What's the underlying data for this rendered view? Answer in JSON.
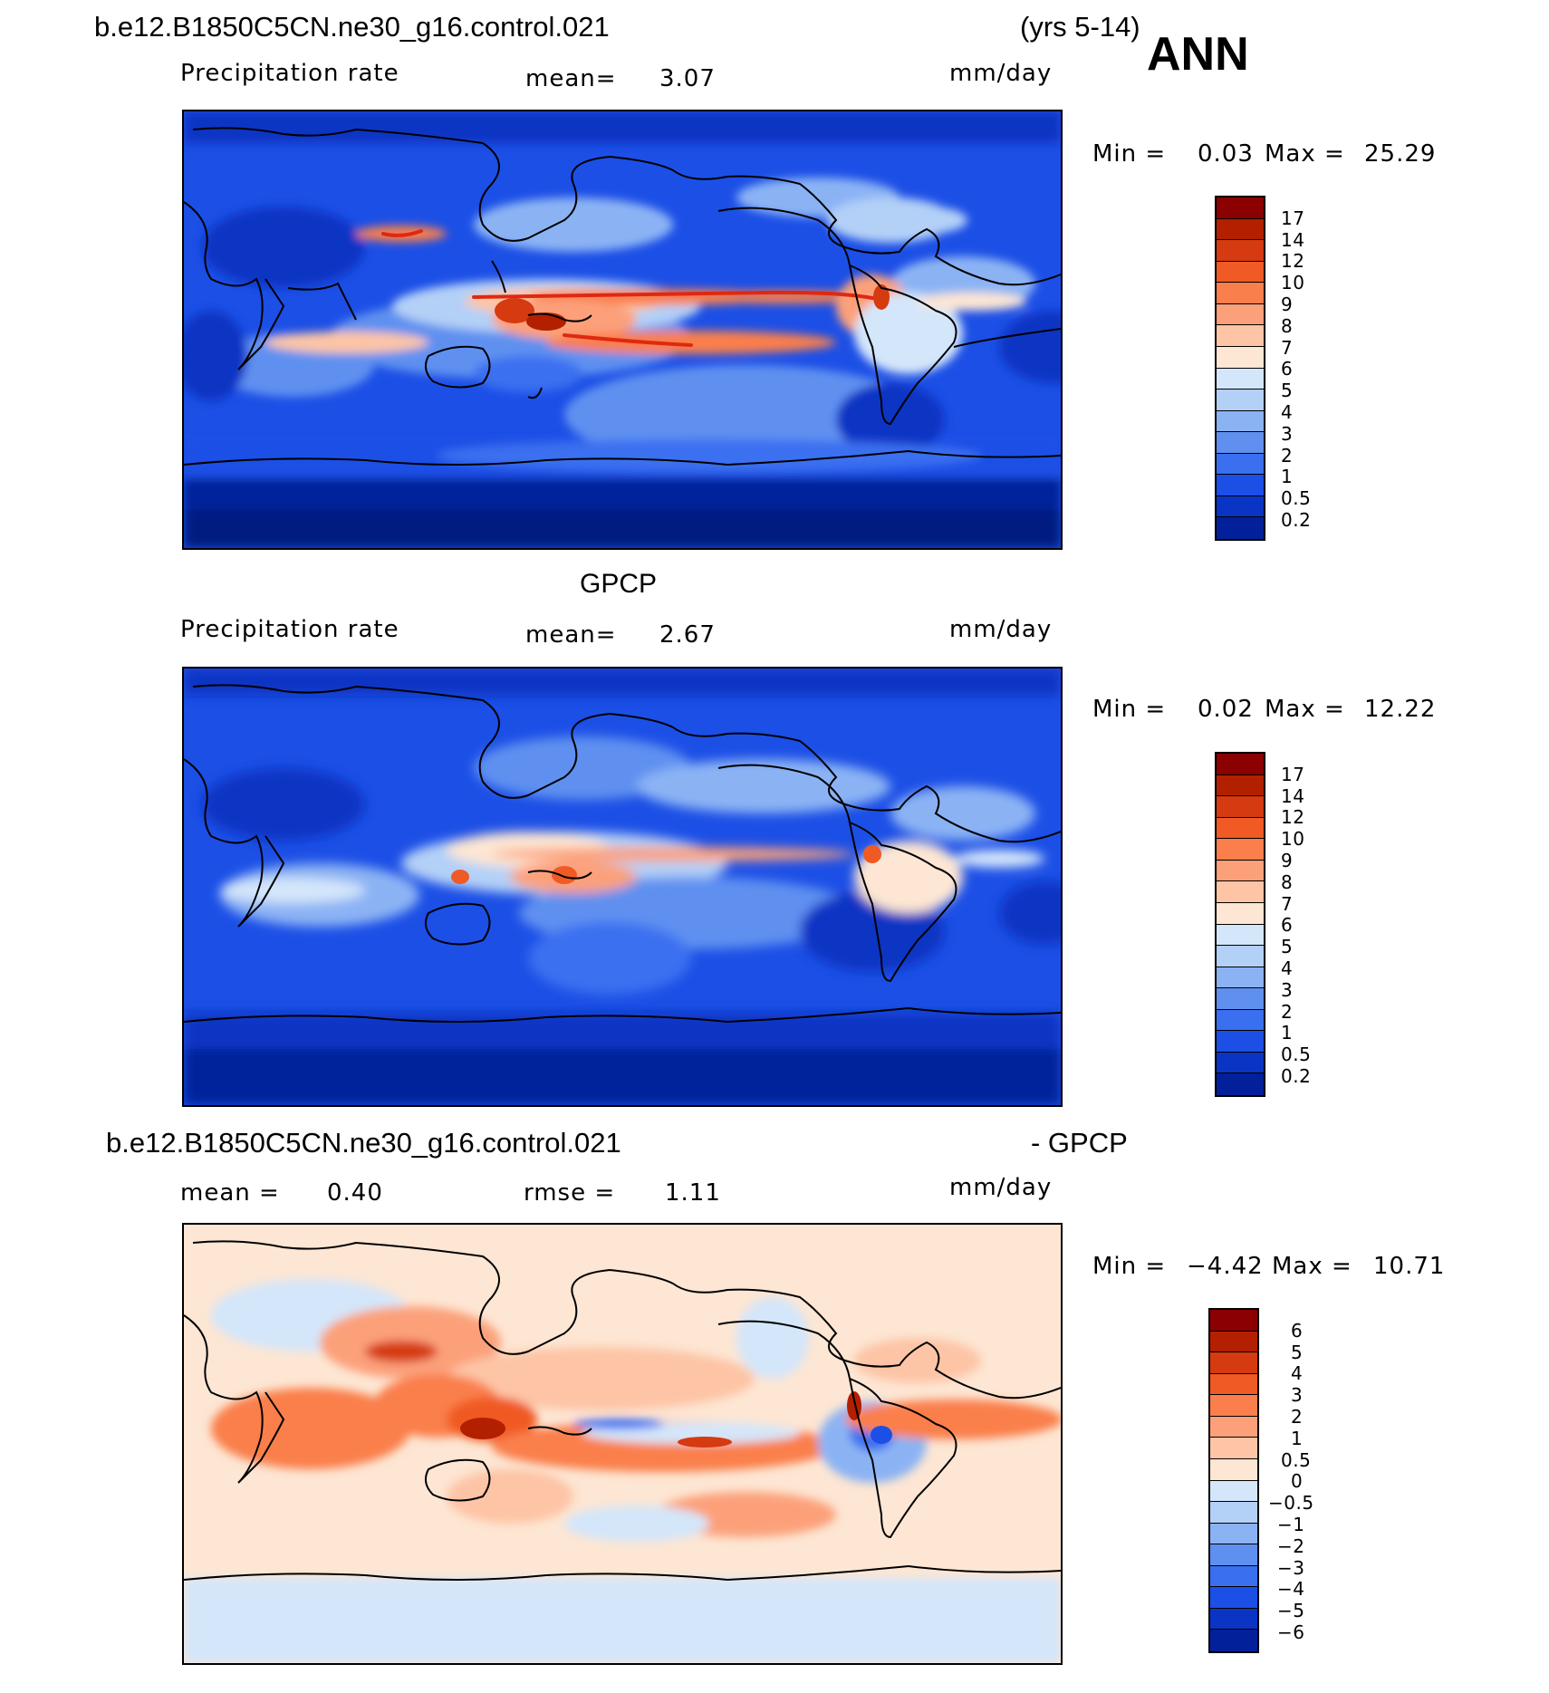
{
  "header": {
    "case_name": "b.e12.B1850C5CN.ne30_g16.control.021",
    "years": "(yrs 5-14)",
    "season": "ANN"
  },
  "panel_model": {
    "variable": "Precipitation rate",
    "mean_label": "mean=",
    "mean_value": "3.07",
    "units": "mm/day",
    "min_label": "Min =",
    "min_value": "0.03",
    "max_label": "Max =",
    "max_value": "25.29"
  },
  "panel_obs": {
    "title": "GPCP",
    "variable": "Precipitation rate",
    "mean_label": "mean=",
    "mean_value": "2.67",
    "units": "mm/day",
    "min_label": "Min =",
    "min_value": "0.02",
    "max_label": "Max =",
    "max_value": "12.22"
  },
  "panel_diff": {
    "title_left": "b.e12.B1850C5CN.ne30_g16.control.021",
    "title_right": "- GPCP",
    "mean_label": "mean =",
    "mean_value": "0.40",
    "rmse_label": "rmse =",
    "rmse_value": "1.11",
    "units": "mm/day",
    "min_label": "Min =",
    "min_value": "−4.42",
    "max_label": "Max =",
    "max_value": "10.71"
  },
  "legend_abs": {
    "labels": [
      "17",
      "14",
      "12",
      "10",
      "9",
      "8",
      "7",
      "6",
      "5",
      "4",
      "3",
      "2",
      "1",
      "0.5",
      "0.2"
    ],
    "colors": [
      "#8b0000",
      "#b22000",
      "#d63a10",
      "#f05a24",
      "#fa7f4c",
      "#fca07a",
      "#fdc5a6",
      "#fde6d3",
      "#d4e6fa",
      "#b3d0f7",
      "#8bb3f4",
      "#5f90f0",
      "#3a6ff0",
      "#1c4fe6",
      "#0a34c4",
      "#02209a"
    ]
  },
  "legend_diff": {
    "labels": [
      "6",
      "5",
      "4",
      "3",
      "2",
      "1",
      "0.5",
      "0",
      "−0.5",
      "−1",
      "−2",
      "−3",
      "−4",
      "−5",
      "−6"
    ],
    "colors": [
      "#8b0000",
      "#b22000",
      "#d63a10",
      "#f05a24",
      "#fa7f4c",
      "#fca07a",
      "#fdc5a6",
      "#fde6d3",
      "#d4e6fa",
      "#b3d0f7",
      "#8bb3f4",
      "#5f90f0",
      "#3a6ff0",
      "#1c4fe6",
      "#0a34c4",
      "#02209a"
    ]
  }
}
